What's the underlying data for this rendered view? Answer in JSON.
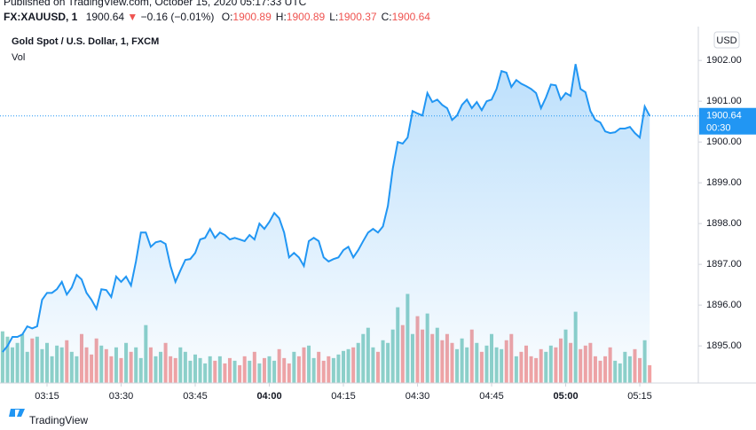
{
  "header": {
    "published": "Published on TradingView.com, October 15, 2020 05:17:33 UTC",
    "symbol": "FX:XAUUSD, 1",
    "last": "1900.64",
    "change": "−0.16 (−0.01%)",
    "ohlc": [
      {
        "label": "O:",
        "value": "1900.89"
      },
      {
        "label": "H:",
        "value": "1900.89"
      },
      {
        "label": "L:",
        "value": "1900.37"
      },
      {
        "label": "C:",
        "value": "1900.64"
      }
    ]
  },
  "chart_data": {
    "type": "area",
    "title": "Gold Spot / U.S. Dollar, 1, FXCM",
    "volume_label": "Vol",
    "currency": "USD",
    "countdown": "00:30",
    "color": "#2196f3",
    "up_color": "#8fd1c8",
    "down_color": "#f3a3a3",
    "xlim": [
      185.48,
      326.85
    ],
    "ylim": [
      1894.09,
      1902.83
    ],
    "vlim": [
      0,
      400
    ],
    "xticks": [
      {
        "value": 195,
        "label": "03:15"
      },
      {
        "value": 210,
        "label": "03:30"
      },
      {
        "value": 225,
        "label": "03:45"
      },
      {
        "value": 240,
        "label": "04:00"
      },
      {
        "value": 255,
        "label": "04:15"
      },
      {
        "value": 270,
        "label": "04:30"
      },
      {
        "value": 285,
        "label": "04:45"
      },
      {
        "value": 300,
        "label": "05:00"
      },
      {
        "value": 315,
        "label": "05:15"
      }
    ],
    "yticks": [
      {
        "value": 1895,
        "label": "1895.00"
      },
      {
        "value": 1896,
        "label": "1896.00"
      },
      {
        "value": 1897,
        "label": "1897.00"
      },
      {
        "value": 1898,
        "label": "1898.00"
      },
      {
        "value": 1899,
        "label": "1899.00"
      },
      {
        "value": 1900,
        "label": "1900.00"
      },
      {
        "value": 1901,
        "label": "1901.00"
      },
      {
        "value": 1902,
        "label": "1902.00"
      }
    ],
    "x": [
      186,
      187,
      188,
      189,
      190,
      191,
      192,
      193,
      194,
      195,
      196,
      197,
      198,
      199,
      200,
      201,
      202,
      203,
      204,
      205,
      206,
      207,
      208,
      209,
      210,
      211,
      212,
      213,
      214,
      215,
      216,
      217,
      218,
      219,
      220,
      221,
      222,
      223,
      224,
      225,
      226,
      227,
      228,
      229,
      230,
      231,
      232,
      233,
      234,
      235,
      236,
      237,
      238,
      239,
      240,
      241,
      242,
      243,
      244,
      245,
      246,
      247,
      248,
      249,
      250,
      251,
      252,
      253,
      254,
      255,
      256,
      257,
      258,
      259,
      260,
      261,
      262,
      263,
      264,
      265,
      266,
      267,
      268,
      269,
      270,
      271,
      272,
      273,
      274,
      275,
      276,
      277,
      278,
      279,
      280,
      281,
      282,
      283,
      284,
      285,
      286,
      287,
      288,
      289,
      290,
      291,
      292,
      293,
      294,
      295,
      296,
      297,
      298,
      299,
      300,
      301,
      302,
      303,
      304,
      305,
      306,
      307,
      308,
      309,
      310,
      311,
      312,
      313,
      314,
      315,
      316,
      317
    ],
    "series": [
      {
        "name": "Gold Spot / U.S. Dollar",
        "values": [
          1894.85,
          1895.0,
          1895.22,
          1895.22,
          1895.28,
          1895.48,
          1895.43,
          1895.48,
          1896.13,
          1896.3,
          1896.3,
          1896.39,
          1896.57,
          1896.26,
          1896.43,
          1896.74,
          1896.63,
          1896.3,
          1896.13,
          1895.91,
          1896.39,
          1896.37,
          1896.2,
          1896.7,
          1896.57,
          1896.7,
          1896.48,
          1897.07,
          1897.78,
          1897.78,
          1897.43,
          1897.54,
          1897.57,
          1897.5,
          1896.96,
          1896.57,
          1896.85,
          1897.11,
          1897.13,
          1897.28,
          1897.61,
          1897.65,
          1897.87,
          1897.65,
          1897.78,
          1897.72,
          1897.61,
          1897.65,
          1897.61,
          1897.57,
          1897.72,
          1897.61,
          1898.0,
          1897.87,
          1898.04,
          1898.26,
          1898.13,
          1897.78,
          1897.17,
          1897.28,
          1897.17,
          1896.96,
          1897.57,
          1897.65,
          1897.57,
          1897.17,
          1897.07,
          1897.13,
          1897.17,
          1897.35,
          1897.43,
          1897.17,
          1897.35,
          1897.57,
          1897.78,
          1897.87,
          1897.78,
          1897.93,
          1898.43,
          1899.35,
          1900.0,
          1899.96,
          1900.11,
          1900.76,
          1900.7,
          1900.65,
          1901.2,
          1900.98,
          1901.04,
          1900.91,
          1900.83,
          1900.54,
          1900.65,
          1900.91,
          1901.04,
          1900.83,
          1900.98,
          1900.78,
          1901.0,
          1901.04,
          1901.3,
          1901.74,
          1901.7,
          1901.35,
          1901.52,
          1901.43,
          1901.37,
          1901.3,
          1901.2,
          1900.83,
          1901.09,
          1901.41,
          1901.39,
          1901.04,
          1901.2,
          1901.13,
          1901.91,
          1901.3,
          1901.22,
          1900.76,
          1900.54,
          1900.48,
          1900.26,
          1900.22,
          1900.24,
          1900.33,
          1900.33,
          1900.37,
          1900.22,
          1900.11,
          1900.87,
          1900.64
        ]
      },
      {
        "name": "Vol",
        "values": [
          58,
          52,
          40,
          45,
          55,
          35,
          50,
          52,
          38,
          45,
          30,
          42,
          40,
          48,
          35,
          30,
          55,
          40,
          32,
          50,
          42,
          38,
          30,
          40,
          28,
          45,
          35,
          40,
          28,
          65,
          40,
          30,
          35,
          45,
          30,
          28,
          40,
          35,
          25,
          32,
          28,
          22,
          30,
          25,
          30,
          22,
          28,
          25,
          20,
          30,
          25,
          35,
          22,
          28,
          30,
          25,
          38,
          28,
          22,
          35,
          30,
          40,
          42,
          28,
          35,
          25,
          30,
          28,
          32,
          36,
          38,
          40,
          45,
          55,
          62,
          40,
          35,
          48,
          45,
          60,
          85,
          65,
          100,
          55,
          75,
          60,
          78,
          55,
          62,
          48,
          55,
          45,
          38,
          50,
          40,
          60,
          45,
          35,
          42,
          55,
          40,
          38,
          48,
          55,
          30,
          35,
          42,
          30,
          28,
          38,
          35,
          42,
          40,
          50,
          60,
          45,
          80,
          38,
          42,
          45,
          30,
          25,
          30,
          40,
          25,
          22,
          35,
          30,
          38,
          28,
          48,
          20
        ]
      }
    ]
  },
  "footer": {
    "brand": "TradingView"
  }
}
